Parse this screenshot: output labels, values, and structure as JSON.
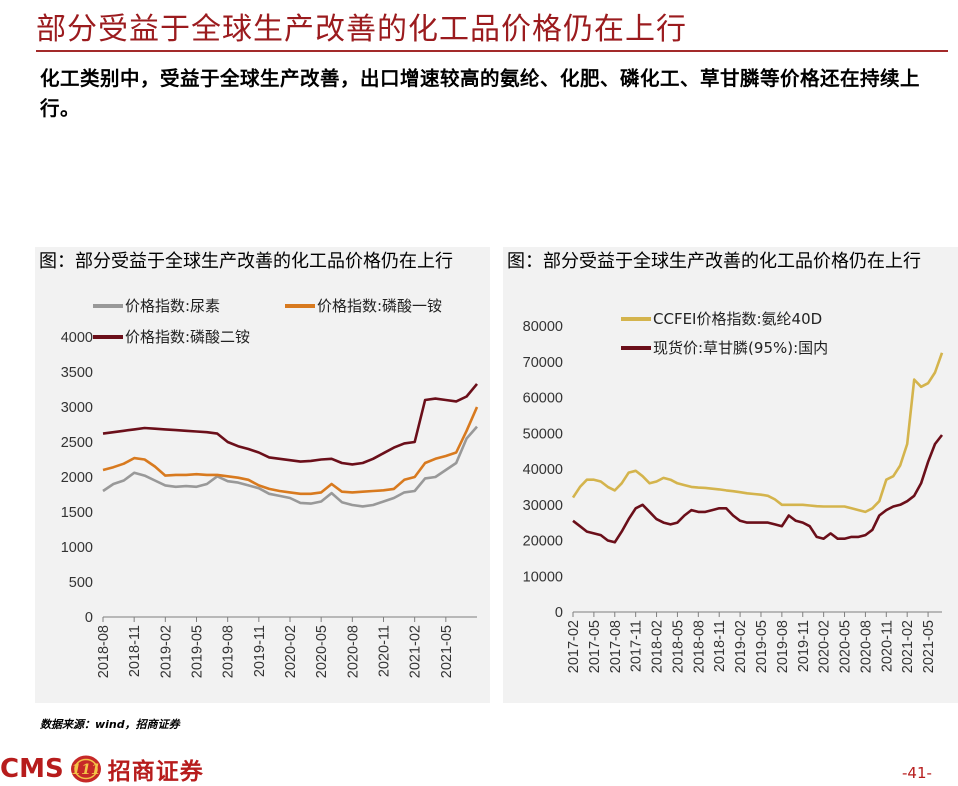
{
  "page": {
    "title": "部分受益于全球生产改善的化工品价格仍在上行",
    "subtitle": "化工类别中，受益于全球生产改善，出口增速较高的氨纶、化肥、磷化工、草甘膦等价格还在持续上行。",
    "source": "数据来源：wind，招商证券",
    "brand_latin": "CMS",
    "brand_logo_glyph": "111",
    "brand_chinese": "招商证券",
    "page_number": "-41-"
  },
  "colors": {
    "title": "#9b1b1e",
    "brand": "#b71c1c",
    "urea": "#999999",
    "map": "#d87a1f",
    "dap": "#6b0f1a",
    "spandex": "#d4b44d",
    "glyphosate": "#6b0f1a"
  },
  "chart_data": [
    {
      "type": "line",
      "title": "图：部分受益于全球生产改善的化工品价格仍在上行",
      "legend_position": "top-left",
      "grid": false,
      "ylim": [
        0,
        4000
      ],
      "y_ticks": [
        0,
        500,
        1000,
        1500,
        2000,
        2500,
        3000,
        3500,
        4000
      ],
      "x_range": [
        "2018-08",
        "2021-08"
      ],
      "x_ticks": [
        "2018-08",
        "2018-11",
        "2019-02",
        "2019-05",
        "2019-08",
        "2019-11",
        "2020-02",
        "2020-05",
        "2020-08",
        "2020-11",
        "2021-02",
        "2021-05"
      ],
      "series": [
        {
          "name": "价格指数:尿素",
          "color_key": "urea",
          "points": [
            [
              "2018-08",
              1800
            ],
            [
              "2018-09",
              1900
            ],
            [
              "2018-10",
              1950
            ],
            [
              "2018-11",
              2060
            ],
            [
              "2018-12",
              2020
            ],
            [
              "2019-01",
              1950
            ],
            [
              "2019-02",
              1880
            ],
            [
              "2019-03",
              1860
            ],
            [
              "2019-04",
              1870
            ],
            [
              "2019-05",
              1860
            ],
            [
              "2019-06",
              1900
            ],
            [
              "2019-07",
              2010
            ],
            [
              "2019-08",
              1940
            ],
            [
              "2019-09",
              1920
            ],
            [
              "2019-10",
              1880
            ],
            [
              "2019-11",
              1840
            ],
            [
              "2019-12",
              1760
            ],
            [
              "2020-01",
              1730
            ],
            [
              "2020-02",
              1700
            ],
            [
              "2020-03",
              1630
            ],
            [
              "2020-04",
              1620
            ],
            [
              "2020-05",
              1650
            ],
            [
              "2020-06",
              1770
            ],
            [
              "2020-07",
              1640
            ],
            [
              "2020-08",
              1600
            ],
            [
              "2020-09",
              1580
            ],
            [
              "2020-10",
              1600
            ],
            [
              "2020-11",
              1650
            ],
            [
              "2020-12",
              1700
            ],
            [
              "2021-01",
              1780
            ],
            [
              "2021-02",
              1800
            ],
            [
              "2021-03",
              1980
            ],
            [
              "2021-04",
              2000
            ],
            [
              "2021-05",
              2100
            ],
            [
              "2021-06",
              2200
            ],
            [
              "2021-07",
              2550
            ],
            [
              "2021-08",
              2720
            ]
          ]
        },
        {
          "name": "价格指数:磷酸一铵",
          "color_key": "map",
          "points": [
            [
              "2018-08",
              2100
            ],
            [
              "2018-09",
              2140
            ],
            [
              "2018-10",
              2190
            ],
            [
              "2018-11",
              2270
            ],
            [
              "2018-12",
              2250
            ],
            [
              "2019-01",
              2150
            ],
            [
              "2019-02",
              2020
            ],
            [
              "2019-03",
              2030
            ],
            [
              "2019-04",
              2030
            ],
            [
              "2019-05",
              2040
            ],
            [
              "2019-06",
              2030
            ],
            [
              "2019-07",
              2030
            ],
            [
              "2019-08",
              2010
            ],
            [
              "2019-09",
              1990
            ],
            [
              "2019-10",
              1960
            ],
            [
              "2019-11",
              1880
            ],
            [
              "2019-12",
              1830
            ],
            [
              "2020-01",
              1800
            ],
            [
              "2020-02",
              1780
            ],
            [
              "2020-03",
              1760
            ],
            [
              "2020-04",
              1760
            ],
            [
              "2020-05",
              1780
            ],
            [
              "2020-06",
              1900
            ],
            [
              "2020-07",
              1790
            ],
            [
              "2020-08",
              1780
            ],
            [
              "2020-09",
              1790
            ],
            [
              "2020-10",
              1800
            ],
            [
              "2020-11",
              1810
            ],
            [
              "2020-12",
              1830
            ],
            [
              "2021-01",
              1960
            ],
            [
              "2021-02",
              2000
            ],
            [
              "2021-03",
              2200
            ],
            [
              "2021-04",
              2260
            ],
            [
              "2021-05",
              2300
            ],
            [
              "2021-06",
              2350
            ],
            [
              "2021-07",
              2660
            ],
            [
              "2021-08",
              3000
            ]
          ]
        },
        {
          "name": "价格指数:磷酸二铵",
          "color_key": "dap",
          "points": [
            [
              "2018-08",
              2620
            ],
            [
              "2018-09",
              2640
            ],
            [
              "2018-10",
              2660
            ],
            [
              "2018-11",
              2680
            ],
            [
              "2018-12",
              2700
            ],
            [
              "2019-01",
              2690
            ],
            [
              "2019-02",
              2680
            ],
            [
              "2019-03",
              2670
            ],
            [
              "2019-04",
              2660
            ],
            [
              "2019-05",
              2650
            ],
            [
              "2019-06",
              2640
            ],
            [
              "2019-07",
              2620
            ],
            [
              "2019-08",
              2500
            ],
            [
              "2019-09",
              2440
            ],
            [
              "2019-10",
              2400
            ],
            [
              "2019-11",
              2350
            ],
            [
              "2019-12",
              2280
            ],
            [
              "2020-01",
              2260
            ],
            [
              "2020-02",
              2240
            ],
            [
              "2020-03",
              2220
            ],
            [
              "2020-04",
              2230
            ],
            [
              "2020-05",
              2250
            ],
            [
              "2020-06",
              2260
            ],
            [
              "2020-07",
              2200
            ],
            [
              "2020-08",
              2180
            ],
            [
              "2020-09",
              2200
            ],
            [
              "2020-10",
              2260
            ],
            [
              "2020-11",
              2340
            ],
            [
              "2020-12",
              2420
            ],
            [
              "2021-01",
              2480
            ],
            [
              "2021-02",
              2500
            ],
            [
              "2021-03",
              3100
            ],
            [
              "2021-04",
              3120
            ],
            [
              "2021-05",
              3100
            ],
            [
              "2021-06",
              3080
            ],
            [
              "2021-07",
              3150
            ],
            [
              "2021-08",
              3330
            ]
          ]
        }
      ]
    },
    {
      "type": "line",
      "title": "图：部分受益于全球生产改善的化工品价格仍在上行",
      "legend_position": "top-left",
      "grid": false,
      "ylim": [
        0,
        80000
      ],
      "y_ticks": [
        0,
        10000,
        20000,
        30000,
        40000,
        50000,
        60000,
        70000,
        80000
      ],
      "x_range": [
        "2017-02",
        "2021-07"
      ],
      "x_ticks": [
        "2017-02",
        "2017-05",
        "2017-08",
        "2017-11",
        "2018-02",
        "2018-05",
        "2018-08",
        "2018-11",
        "2019-02",
        "2019-05",
        "2019-08",
        "2019-11",
        "2020-02",
        "2020-05",
        "2020-08",
        "2020-11",
        "2021-02",
        "2021-05"
      ],
      "series": [
        {
          "name": "CCFEI价格指数:氨纶40D",
          "color_key": "spandex",
          "points": [
            [
              "2017-02",
              32000
            ],
            [
              "2017-03",
              35000
            ],
            [
              "2017-04",
              37000
            ],
            [
              "2017-05",
              37000
            ],
            [
              "2017-06",
              36500
            ],
            [
              "2017-07",
              35000
            ],
            [
              "2017-08",
              34000
            ],
            [
              "2017-09",
              36000
            ],
            [
              "2017-10",
              39000
            ],
            [
              "2017-11",
              39500
            ],
            [
              "2017-12",
              38000
            ],
            [
              "2018-01",
              36000
            ],
            [
              "2018-02",
              36500
            ],
            [
              "2018-03",
              37500
            ],
            [
              "2018-04",
              37000
            ],
            [
              "2018-05",
              36000
            ],
            [
              "2018-06",
              35500
            ],
            [
              "2018-07",
              35000
            ],
            [
              "2018-08",
              34800
            ],
            [
              "2018-09",
              34700
            ],
            [
              "2018-10",
              34500
            ],
            [
              "2018-11",
              34300
            ],
            [
              "2018-12",
              34000
            ],
            [
              "2019-01",
              33800
            ],
            [
              "2019-02",
              33500
            ],
            [
              "2019-03",
              33200
            ],
            [
              "2019-04",
              33000
            ],
            [
              "2019-05",
              32800
            ],
            [
              "2019-06",
              32500
            ],
            [
              "2019-07",
              31500
            ],
            [
              "2019-08",
              30000
            ],
            [
              "2019-09",
              30000
            ],
            [
              "2019-10",
              30000
            ],
            [
              "2019-11",
              30000
            ],
            [
              "2019-12",
              29800
            ],
            [
              "2020-01",
              29600
            ],
            [
              "2020-02",
              29500
            ],
            [
              "2020-03",
              29500
            ],
            [
              "2020-04",
              29500
            ],
            [
              "2020-05",
              29500
            ],
            [
              "2020-06",
              29000
            ],
            [
              "2020-07",
              28500
            ],
            [
              "2020-08",
              28000
            ],
            [
              "2020-09",
              29000
            ],
            [
              "2020-10",
              31000
            ],
            [
              "2020-11",
              37000
            ],
            [
              "2020-12",
              38000
            ],
            [
              "2021-01",
              41000
            ],
            [
              "2021-02",
              47000
            ],
            [
              "2021-03",
              65000
            ],
            [
              "2021-04",
              63000
            ],
            [
              "2021-05",
              64000
            ],
            [
              "2021-06",
              67000
            ],
            [
              "2021-07",
              72500
            ]
          ]
        },
        {
          "name": "现货价:草甘膦(95%):国内",
          "color_key": "glyphosate",
          "points": [
            [
              "2017-02",
              25500
            ],
            [
              "2017-03",
              24000
            ],
            [
              "2017-04",
              22500
            ],
            [
              "2017-05",
              22000
            ],
            [
              "2017-06",
              21500
            ],
            [
              "2017-07",
              20000
            ],
            [
              "2017-08",
              19500
            ],
            [
              "2017-09",
              22500
            ],
            [
              "2017-10",
              26000
            ],
            [
              "2017-11",
              29000
            ],
            [
              "2017-12",
              30000
            ],
            [
              "2018-01",
              28000
            ],
            [
              "2018-02",
              26000
            ],
            [
              "2018-03",
              25000
            ],
            [
              "2018-04",
              24500
            ],
            [
              "2018-05",
              25000
            ],
            [
              "2018-06",
              27000
            ],
            [
              "2018-07",
              28500
            ],
            [
              "2018-08",
              28000
            ],
            [
              "2018-09",
              28000
            ],
            [
              "2018-10",
              28500
            ],
            [
              "2018-11",
              29000
            ],
            [
              "2018-12",
              29000
            ],
            [
              "2019-01",
              27000
            ],
            [
              "2019-02",
              25500
            ],
            [
              "2019-03",
              25000
            ],
            [
              "2019-04",
              25000
            ],
            [
              "2019-05",
              25000
            ],
            [
              "2019-06",
              25000
            ],
            [
              "2019-07",
              24500
            ],
            [
              "2019-08",
              24000
            ],
            [
              "2019-09",
              27000
            ],
            [
              "2019-10",
              25500
            ],
            [
              "2019-11",
              25000
            ],
            [
              "2019-12",
              24000
            ],
            [
              "2020-01",
              21000
            ],
            [
              "2020-02",
              20500
            ],
            [
              "2020-03",
              22000
            ],
            [
              "2020-04",
              20500
            ],
            [
              "2020-05",
              20500
            ],
            [
              "2020-06",
              21000
            ],
            [
              "2020-07",
              21000
            ],
            [
              "2020-08",
              21500
            ],
            [
              "2020-09",
              23000
            ],
            [
              "2020-10",
              27000
            ],
            [
              "2020-11",
              28500
            ],
            [
              "2020-12",
              29500
            ],
            [
              "2021-01",
              30000
            ],
            [
              "2021-02",
              31000
            ],
            [
              "2021-03",
              32500
            ],
            [
              "2021-04",
              36000
            ],
            [
              "2021-05",
              42000
            ],
            [
              "2021-06",
              47000
            ],
            [
              "2021-07",
              49500
            ]
          ]
        }
      ]
    }
  ]
}
